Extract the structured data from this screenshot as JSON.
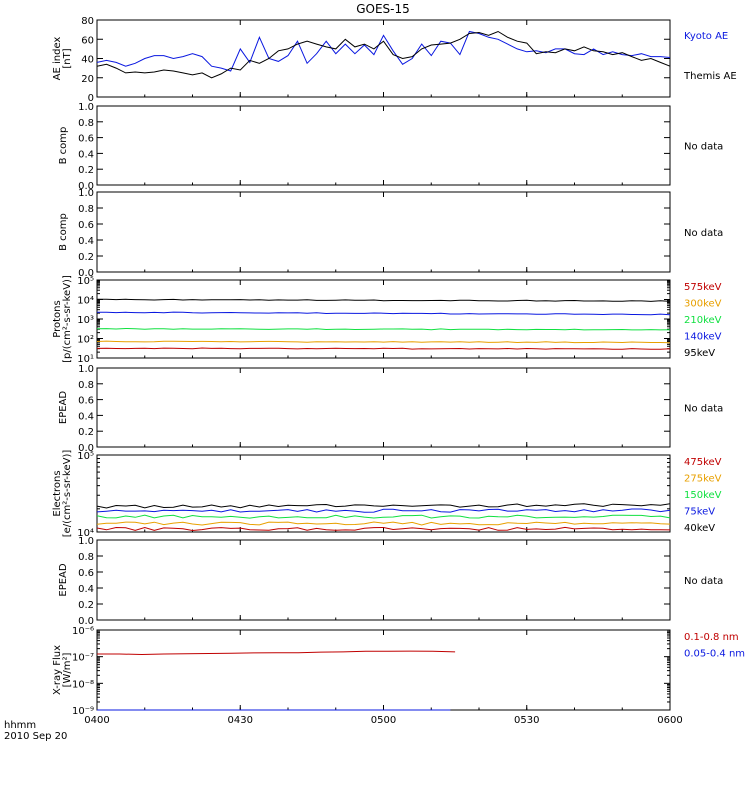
{
  "title": "GOES-15",
  "colors": {
    "black": "#000000",
    "blue": "#0a18e0",
    "red": "#c00000",
    "orange": "#e8a000",
    "green": "#10e040"
  },
  "chart_data": [
    {
      "id": "ae",
      "type": "line",
      "ylabel": [
        "AE index",
        "[nT]"
      ],
      "yticks": [
        "0",
        "20",
        "40",
        "60",
        "80"
      ],
      "ylim": [
        0,
        80
      ],
      "x": [
        0,
        2,
        4,
        6,
        8,
        10,
        12,
        14,
        16,
        18,
        20,
        22,
        24,
        26,
        28,
        30,
        32,
        34,
        36,
        38,
        40,
        42,
        44,
        46,
        48,
        50,
        52,
        54,
        56,
        58,
        60,
        62,
        64,
        66,
        68,
        70,
        72,
        74,
        76,
        78,
        80,
        82,
        84,
        86,
        88,
        90,
        92,
        94,
        96,
        98,
        100,
        102,
        104,
        106,
        108,
        110,
        112,
        114,
        116,
        118,
        120
      ],
      "series": [
        {
          "name": "Kyoto AE",
          "color": "#0a18e0",
          "values": [
            36,
            38,
            36,
            32,
            35,
            40,
            43,
            43,
            40,
            42,
            45,
            42,
            32,
            30,
            27,
            50,
            36,
            62,
            40,
            37,
            43,
            58,
            35,
            45,
            58,
            45,
            55,
            45,
            54,
            44,
            64,
            48,
            34,
            40,
            55,
            43,
            58,
            56,
            44,
            68,
            66,
            62,
            60,
            55,
            50,
            47,
            48,
            46,
            50,
            50,
            45,
            44,
            50,
            44,
            47,
            44,
            43,
            45,
            42,
            42,
            41
          ]
        },
        {
          "name": "Themis AE",
          "color": "#000000",
          "values": [
            32,
            34,
            30,
            25,
            26,
            25,
            26,
            28,
            27,
            25,
            23,
            25,
            20,
            24,
            30,
            28,
            38,
            35,
            40,
            48,
            50,
            55,
            58,
            55,
            52,
            50,
            60,
            52,
            55,
            50,
            58,
            44,
            40,
            42,
            50,
            54,
            55,
            56,
            60,
            66,
            67,
            64,
            68,
            62,
            58,
            56,
            45,
            47,
            46,
            50,
            48,
            52,
            48,
            47,
            44,
            46,
            42,
            38,
            40,
            36,
            32
          ]
        }
      ]
    },
    {
      "id": "b1",
      "type": "line",
      "ylabel": [
        "B comp"
      ],
      "yticks": [
        "0.0",
        "0.2",
        "0.4",
        "0.6",
        "0.8",
        "1.0"
      ],
      "ylim": [
        0,
        1
      ],
      "status": "No data"
    },
    {
      "id": "b2",
      "type": "line",
      "ylabel": [
        "B comp"
      ],
      "yticks": [
        "0.0",
        "0.2",
        "0.4",
        "0.6",
        "0.8",
        "1.0"
      ],
      "ylim": [
        0,
        1
      ],
      "status": "No data"
    },
    {
      "id": "protons",
      "type": "line",
      "ylabel": [
        "Protons",
        "[p/(cm²-s-sr-keV)]"
      ],
      "yticks": [
        "10¹",
        "10²",
        "10³",
        "10⁴",
        "10⁵"
      ],
      "ylim_log10": [
        1,
        5
      ],
      "legend": [
        {
          "label": "575keV",
          "color": "#c00000"
        },
        {
          "label": "300keV",
          "color": "#e8a000"
        },
        {
          "label": "210keV",
          "color": "#10e040"
        },
        {
          "label": "140keV",
          "color": "#0a18e0"
        },
        {
          "label": "95keV",
          "color": "#000000"
        }
      ],
      "series": [
        {
          "name": "95keV",
          "color": "#000000",
          "level_log10": 4.0,
          "trend": -0.08
        },
        {
          "name": "140keV",
          "color": "#0a18e0",
          "level_log10": 3.35,
          "trend": -0.12
        },
        {
          "name": "210keV",
          "color": "#10e040",
          "level_log10": 2.5,
          "trend": -0.05
        },
        {
          "name": "300keV",
          "color": "#e8a000",
          "level_log10": 1.85,
          "trend": -0.05
        },
        {
          "name": "575keV",
          "color": "#c00000",
          "level_log10": 1.5,
          "trend": -0.04
        }
      ]
    },
    {
      "id": "epead1",
      "type": "line",
      "ylabel": [
        "EPEAD"
      ],
      "yticks": [
        "0.0",
        "0.2",
        "0.4",
        "0.6",
        "0.8",
        "1.0"
      ],
      "ylim": [
        0,
        1
      ],
      "status": "No data"
    },
    {
      "id": "electrons",
      "type": "line",
      "ylabel": [
        "Electrons",
        "[e/(cm²-s-sr-keV)]"
      ],
      "yticks": [
        "10⁴",
        "10⁵"
      ],
      "ylim_log10": [
        4,
        5
      ],
      "legend": [
        {
          "label": "475keV",
          "color": "#c00000"
        },
        {
          "label": "275keV",
          "color": "#e8a000"
        },
        {
          "label": "150keV",
          "color": "#10e040"
        },
        {
          "label": "75keV",
          "color": "#0a18e0"
        },
        {
          "label": "40keV",
          "color": "#000000"
        }
      ],
      "series": [
        {
          "name": "40keV",
          "color": "#000000",
          "level_log10": 4.33,
          "trend": 0.02
        },
        {
          "name": "75keV",
          "color": "#0a18e0",
          "level_log10": 4.27,
          "trend": 0.01
        },
        {
          "name": "150keV",
          "color": "#10e040",
          "level_log10": 4.2,
          "trend": 0.0
        },
        {
          "name": "275keV",
          "color": "#e8a000",
          "level_log10": 4.11,
          "trend": 0.0
        },
        {
          "name": "475keV",
          "color": "#c00000",
          "level_log10": 4.04,
          "trend": 0.0
        }
      ]
    },
    {
      "id": "epead2",
      "type": "line",
      "ylabel": [
        "EPEAD"
      ],
      "yticks": [
        "0.0",
        "0.2",
        "0.4",
        "0.6",
        "0.8",
        "1.0"
      ],
      "ylim": [
        0,
        1
      ],
      "status": "No data"
    },
    {
      "id": "xray",
      "type": "line",
      "ylabel": [
        "X-ray Flux",
        "[W/m²]"
      ],
      "yticks": [
        "10⁻⁹",
        "10⁻⁸",
        "10⁻⁷",
        "10⁻⁶"
      ],
      "ylim_log10": [
        -9,
        -6
      ],
      "legend": [
        {
          "label": "0.1-0.8 nm",
          "color": "#c00000"
        },
        {
          "label": "0.05-0.4 nm",
          "color": "#0a18e0"
        }
      ],
      "series": [
        {
          "name": "0.1-0.8 nm",
          "color": "#c00000",
          "x_end": 75,
          "values_log10": [
            -6.9,
            -6.9,
            -6.92,
            -6.9,
            -6.89,
            -6.88,
            -6.87,
            -6.86,
            -6.85,
            -6.85,
            -6.83,
            -6.82,
            -6.8,
            -6.8,
            -6.79,
            -6.8,
            -6.82
          ]
        },
        {
          "name": "0.05-0.4 nm",
          "color": "#0a18e0",
          "x_end": 75,
          "level_log10": -9.0
        }
      ]
    }
  ],
  "x_axis": {
    "ticks": [
      "0400",
      "0430",
      "0500",
      "0530",
      "0600"
    ],
    "tick_minutes": [
      0,
      30,
      60,
      90,
      120
    ],
    "xlim_minutes": [
      0,
      120
    ],
    "label": "hhmm",
    "date": "2010 Sep 20"
  }
}
